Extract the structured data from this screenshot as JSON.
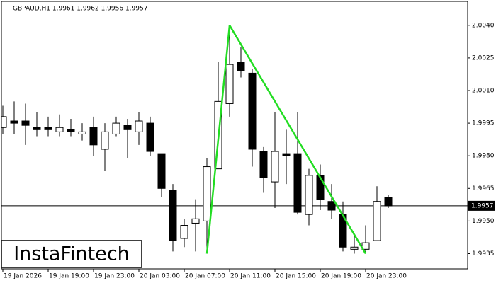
{
  "chart_data": {
    "type": "candlestick",
    "header": "GBPAUD,H1  1.9961 1.9962 1.9956 1.9957",
    "watermark": "InstaFintech",
    "categories": [
      "19 Jan 2026",
      null,
      null,
      null,
      "19 Jan 19:00",
      null,
      null,
      null,
      "19 Jan 23:00",
      null,
      null,
      null,
      "20 Jan 03:00",
      null,
      null,
      null,
      "20 Jan 07:00",
      null,
      null,
      null,
      "20 Jan 11:00",
      null,
      null,
      null,
      "20 Jan 15:00",
      null,
      null,
      null,
      "20 Jan 19:00",
      null,
      null,
      null,
      "20 Jan 23:00",
      null,
      null
    ],
    "open": [
      1.9993,
      1.9996,
      1.9996,
      1.9993,
      1.9993,
      1.9991,
      1.9992,
      1.999,
      1.9993,
      1.9983,
      1.999,
      1.9994,
      1.9991,
      1.9995,
      1.9981,
      1.9964,
      1.9942,
      1.9949,
      1.995,
      1.9974,
      2.0004,
      2.0023,
      2.0018,
      1.9982,
      1.9968,
      1.9981,
      1.9981,
      1.9953,
      1.9971,
      1.9959,
      1.9953,
      1.9937,
      1.9937,
      1.9941,
      1.9961
    ],
    "high": [
      2.0003,
      2.0005,
      2.0004,
      2.0,
      1.9998,
      1.9999,
      1.9997,
      1.9995,
      1.9998,
      1.9995,
      1.9998,
      1.9997,
      2.0,
      1.9998,
      1.9981,
      1.9967,
      1.9951,
      1.996,
      1.9979,
      2.0023,
      2.004,
      2.003,
      2.002,
      1.9984,
      2.0,
      1.9992,
      2.0,
      1.9974,
      1.9976,
      1.9967,
      1.9959,
      1.9944,
      1.9948,
      1.9966,
      1.9962
    ],
    "low": [
      1.999,
      1.999,
      1.9985,
      1.9989,
      1.9989,
      1.9989,
      1.9989,
      1.9987,
      1.998,
      1.9973,
      1.9989,
      1.9979,
      1.9985,
      1.998,
      1.9961,
      1.9936,
      1.9938,
      1.9936,
      1.9935,
      1.9974,
      1.9998,
      2.0016,
      1.9975,
      1.9963,
      1.9956,
      1.9967,
      1.9953,
      1.9948,
      1.9955,
      1.9951,
      1.9936,
      1.9935,
      1.9935,
      1.9941,
      1.9956
    ],
    "close": [
      1.9998,
      1.9995,
      1.9994,
      1.9992,
      1.9992,
      1.9993,
      1.9991,
      1.9991,
      1.9985,
      1.9991,
      1.9995,
      1.9992,
      1.9996,
      1.9982,
      1.9965,
      1.9941,
      1.9948,
      1.9951,
      1.9975,
      2.0005,
      2.0022,
      2.0019,
      1.9983,
      1.997,
      1.9982,
      1.998,
      1.9954,
      1.9971,
      1.996,
      1.9955,
      1.9938,
      1.9938,
      1.994,
      1.9959,
      1.9957
    ],
    "up_color": "#ffffff",
    "down_color": "#000000",
    "last_price": 1.9957,
    "pattern": {
      "color": "#22dd22",
      "points": [
        {
          "index": 18,
          "value": 1.9935
        },
        {
          "index": 20,
          "value": 2.004
        },
        {
          "index": 32,
          "value": 1.9935
        }
      ]
    },
    "ylim": [
      1.9928,
      2.0051
    ],
    "yticks": [
      {
        "value": 2.004,
        "label": "2.0040"
      },
      2.0025,
      {
        "value": 2.001,
        "label": "2.0010"
      },
      1.9995,
      {
        "value": 1.998,
        "label": "1.9980"
      },
      1.9965,
      {
        "value": 1.995,
        "label": "1.9950"
      },
      1.9935
    ]
  }
}
